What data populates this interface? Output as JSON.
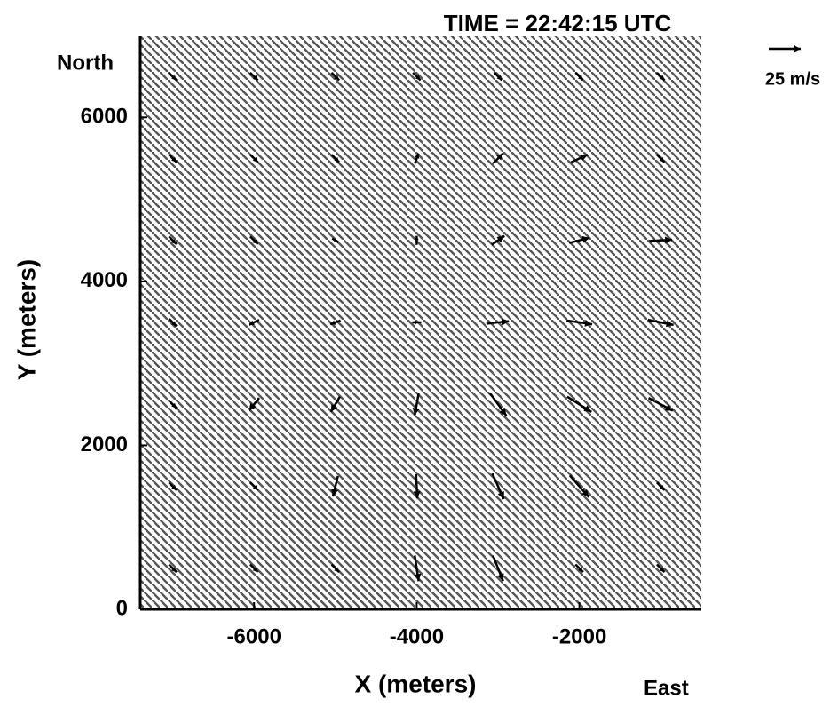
{
  "chart_data": {
    "type": "quiver",
    "title": "TIME = 22:42:15 UTC",
    "x_label": "X (meters)",
    "y_label": "Y (meters)",
    "annotations": [
      "North",
      "East"
    ],
    "xlim": [
      -7400,
      -500
    ],
    "ylim": [
      0,
      7000
    ],
    "xticks": [
      -6000,
      -4000,
      -2000
    ],
    "yticks": [
      0,
      2000,
      4000,
      6000
    ],
    "color": "#000000",
    "reference": {
      "value": 25,
      "label": "25 m/s"
    },
    "x": [
      -7000,
      -6000,
      -5000,
      -4000,
      -3000,
      -2000,
      -1000,
      -7000,
      -6000,
      -5000,
      -4000,
      -3000,
      -2000,
      -1000,
      -7000,
      -6000,
      -5000,
      -4000,
      -3000,
      -2000,
      -1000,
      -7000,
      -6000,
      -5000,
      -4000,
      -3000,
      -2000,
      -1000,
      -7000,
      -6000,
      -5000,
      -4000,
      -3000,
      -2000,
      -1000,
      -7000,
      -6000,
      -5000,
      -4000,
      -3000,
      -2000,
      -1000,
      -7000,
      -6000,
      -5000,
      -4000,
      -3000,
      -2000,
      -1000
    ],
    "y": [
      500,
      500,
      500,
      500,
      500,
      500,
      500,
      1500,
      1500,
      1500,
      1500,
      1500,
      1500,
      1500,
      2500,
      2500,
      2500,
      2500,
      2500,
      2500,
      2500,
      3500,
      3500,
      3500,
      3500,
      3500,
      3500,
      3500,
      4500,
      4500,
      4500,
      4500,
      4500,
      4500,
      4500,
      5500,
      5500,
      5500,
      5500,
      5500,
      5500,
      5500,
      6500,
      6500,
      6500,
      6500,
      6500,
      6500,
      6500
    ],
    "u": [
      6,
      6,
      6,
      3,
      8,
      6,
      6,
      6,
      6,
      -4,
      1,
      9,
      15,
      6,
      6,
      -8,
      -7,
      -3,
      13,
      19,
      19,
      6,
      -8,
      -8,
      -7,
      17,
      20,
      20,
      6,
      6,
      -5,
      0,
      10,
      16,
      18,
      6,
      6,
      6,
      3,
      8,
      13,
      6,
      6,
      6,
      6,
      6,
      6,
      6,
      6
    ],
    "v": [
      -6,
      -6,
      -6,
      -20,
      -20,
      -6,
      -6,
      -6,
      -6,
      -16,
      -19,
      -20,
      -17,
      -6,
      -6,
      -10,
      -12,
      -17,
      -18,
      -12,
      -10,
      -6,
      -4,
      -3,
      0,
      2,
      -3,
      -4,
      -6,
      -6,
      3,
      7,
      7,
      4,
      1,
      -6,
      -6,
      -6,
      8,
      8,
      6,
      -6,
      -6,
      -6,
      -6,
      -6,
      -6,
      -6,
      -6
    ]
  }
}
